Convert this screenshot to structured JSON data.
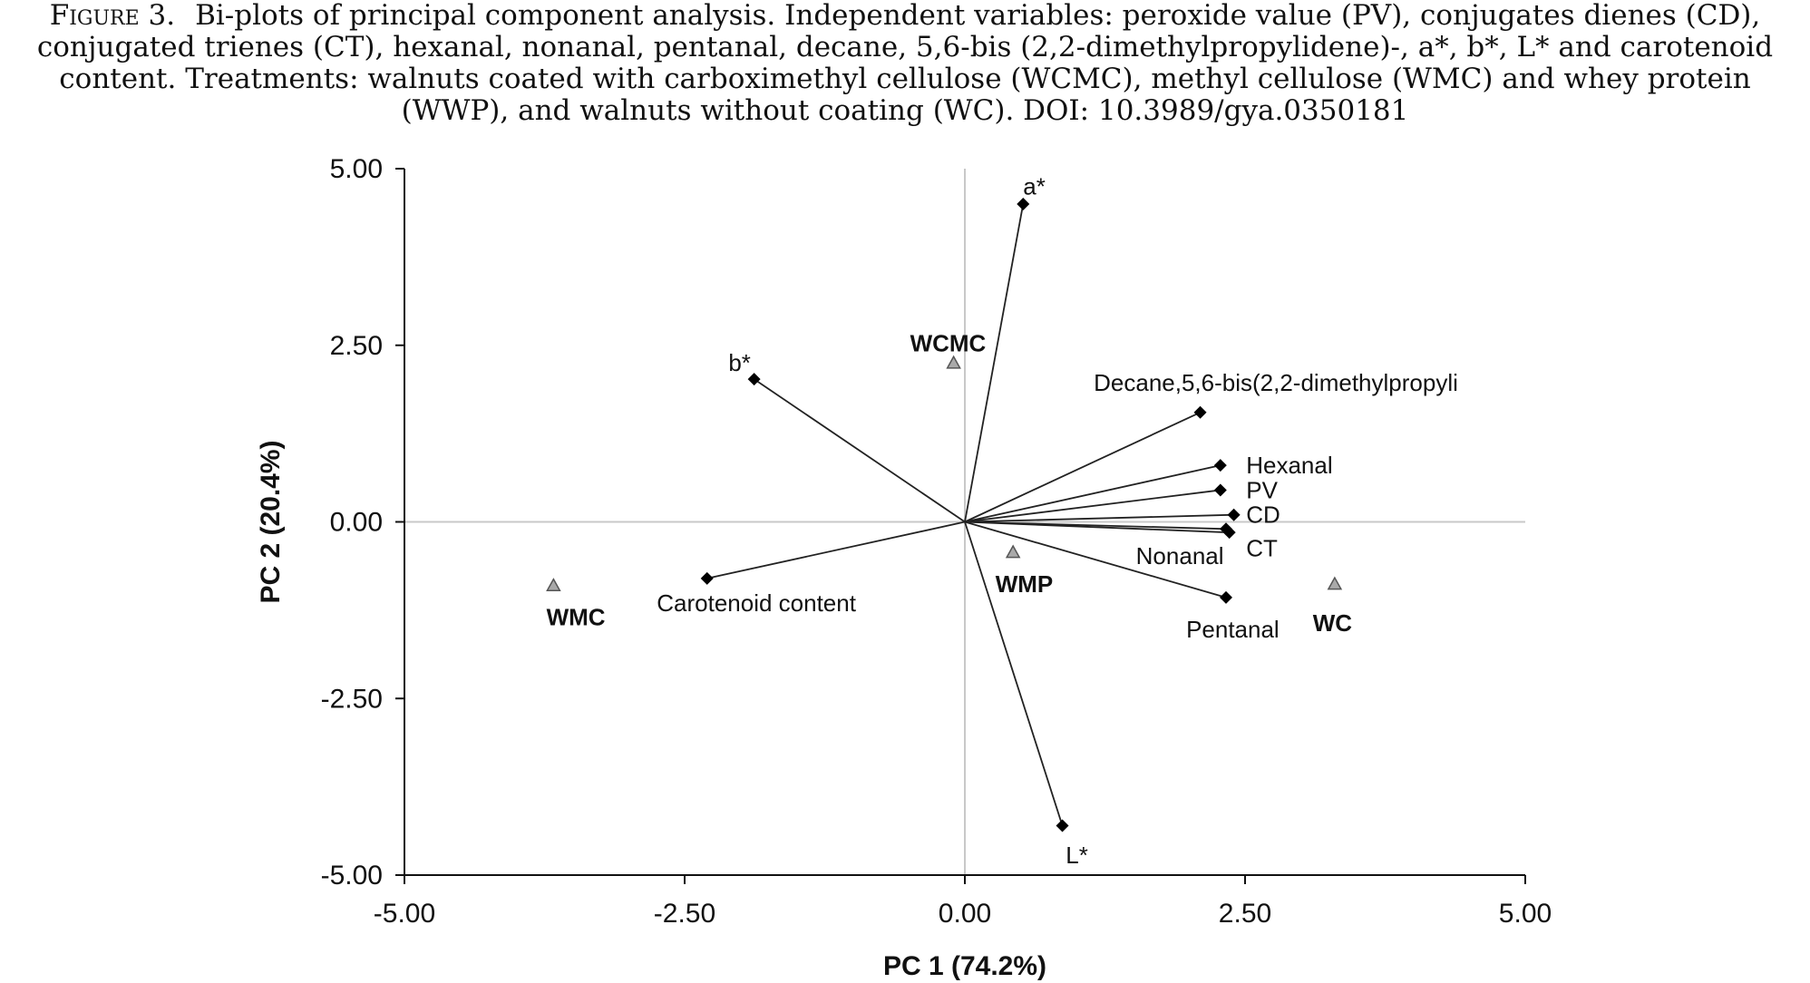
{
  "caption": {
    "lead": "Figure 3.",
    "text": "Bi-plots of principal component analysis. Independent variables: peroxide value (PV), conjugates dienes (CD), conjugated trienes (CT), hexanal, nonanal, pentanal, decane, 5,6-bis (2,2-dimethylpropylidene)-, a*, b*, L* and carotenoid content. Treatments: walnuts coated with carboximethyl cellulose (WCMC), methyl cellulose (WMC) and whey protein (WWP), and walnuts without coating (WC). DOI: 10.3989/gya.0350181"
  },
  "chart_data": {
    "type": "scatter",
    "title": "",
    "xlabel": "PC 1 (74.2%)",
    "ylabel": "PC 2 (20.4%)",
    "xlim": [
      -5,
      5
    ],
    "ylim": [
      -5,
      5
    ],
    "x_ticks": [
      "-5.00",
      "-2.50",
      "0.00",
      "2.50",
      "5.00"
    ],
    "y_ticks": [
      "5.00",
      "2.50",
      "0.00",
      "-2.50",
      "-5.00"
    ],
    "x_tick_values": [
      -5,
      -2.5,
      0,
      2.5,
      5
    ],
    "y_tick_values": [
      5,
      2.5,
      0,
      -2.5,
      -5
    ],
    "grid": false,
    "zero_lines": true,
    "loadings": [
      {
        "label": "a*",
        "x": 0.52,
        "y": 4.5,
        "label_anchor": "start",
        "label_dx": 0.0,
        "label_dy": 0.25
      },
      {
        "label": "b*",
        "x": -1.88,
        "y": 2.02,
        "label_anchor": "end",
        "label_dx": -0.03,
        "label_dy": 0.23
      },
      {
        "label": "Decane,5,6-bis(2,2-dimethylpropyli",
        "x": 2.1,
        "y": 1.55,
        "label_anchor": "start",
        "label_dx": -0.95,
        "label_dy": 0.42
      },
      {
        "label": "Hexanal",
        "x": 2.28,
        "y": 0.8,
        "label_anchor": "start",
        "label_dx": 0.23,
        "label_dy": 0.0
      },
      {
        "label": "PV",
        "x": 2.28,
        "y": 0.45,
        "label_anchor": "start",
        "label_dx": 0.23,
        "label_dy": 0.0
      },
      {
        "label": "CD",
        "x": 2.4,
        "y": 0.1,
        "label_anchor": "start",
        "label_dx": 0.11,
        "label_dy": 0.0
      },
      {
        "label": "CT",
        "x": 2.33,
        "y": -0.1,
        "label_anchor": "start",
        "label_dx": 0.18,
        "label_dy": -0.27
      },
      {
        "label": "Nonanal",
        "x": 2.36,
        "y": -0.15,
        "label_anchor": "end",
        "label_dx": -0.05,
        "label_dy": -0.33
      },
      {
        "label": "Pentanal",
        "x": 2.33,
        "y": -1.07,
        "label_anchor": "middle",
        "label_dx": 0.06,
        "label_dy": -0.45
      },
      {
        "label": "Carotenoid content",
        "x": -2.3,
        "y": -0.8,
        "label_anchor": "middle",
        "label_dx": 0.44,
        "label_dy": -0.35
      },
      {
        "label": "L*",
        "x": 0.87,
        "y": -4.3,
        "label_anchor": "start",
        "label_dx": 0.03,
        "label_dy": -0.42
      }
    ],
    "scores": [
      {
        "label": "WCMC",
        "x": -0.1,
        "y": 2.25,
        "label_anchor": "middle",
        "label_dx": -0.05,
        "label_dy": 0.28
      },
      {
        "label": "WMP",
        "x": 0.43,
        "y": -0.43,
        "label_anchor": "middle",
        "label_dx": 0.1,
        "label_dy": -0.45
      },
      {
        "label": "WMC",
        "x": -3.67,
        "y": -0.9,
        "label_anchor": "middle",
        "label_dx": 0.2,
        "label_dy": -0.45
      },
      {
        "label": "WC",
        "x": 3.3,
        "y": -0.88,
        "label_anchor": "middle",
        "label_dx": -0.02,
        "label_dy": -0.55
      }
    ],
    "colors": {
      "axis": "#111111",
      "zero_line": "#c8c8c8",
      "vector": "#222222",
      "loading_marker": "#000000",
      "score_fill": "#a9a9a9",
      "score_stroke": "#555555"
    }
  }
}
